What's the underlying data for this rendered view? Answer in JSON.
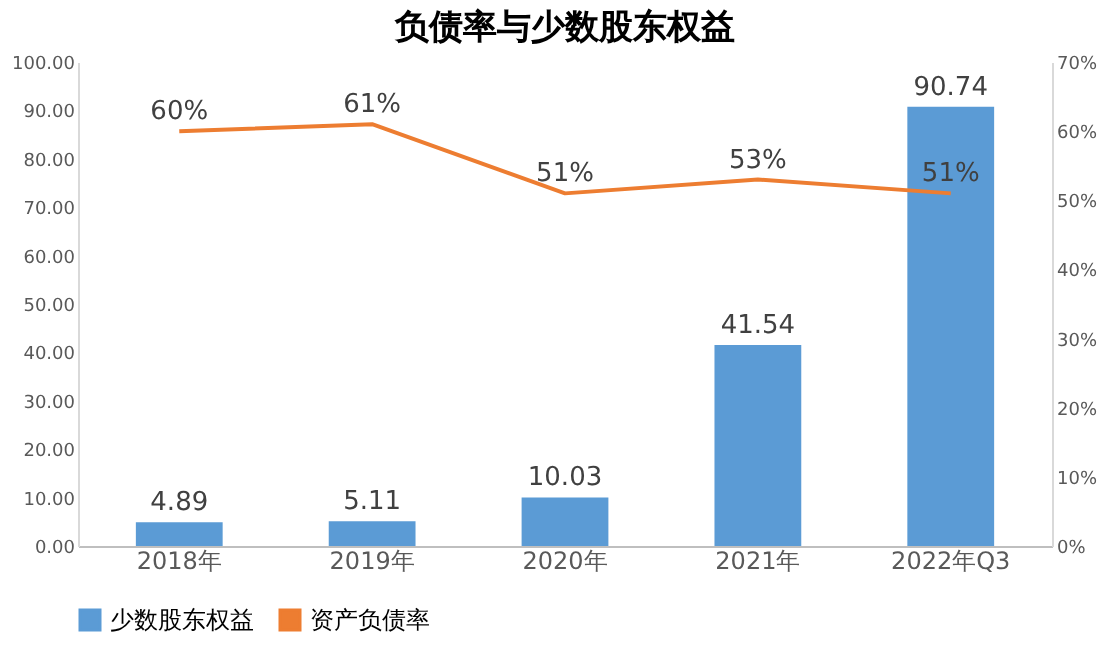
{
  "chart_data": {
    "type": "bar",
    "title": "负债率与少数股东权益",
    "categories": [
      "2018年",
      "2019年",
      "2020年",
      "2021年",
      "2022年Q3"
    ],
    "series": [
      {
        "name": "少数股东权益",
        "color": "#5b9bd5",
        "values": [
          4.89,
          5.11,
          10.03,
          41.54,
          90.74
        ],
        "value_labels": [
          "4.89",
          "5.11",
          "10.03",
          "41.54",
          "90.74"
        ]
      },
      {
        "name": "资产负债率",
        "type": "line",
        "axis": "y2",
        "color": "#ed7d31",
        "values": [
          60,
          61,
          51,
          53,
          51
        ],
        "value_labels": [
          "60%",
          "61%",
          "51%",
          "53%",
          "51%"
        ]
      }
    ],
    "ylim": [
      0,
      100
    ],
    "yticks": [
      {
        "value": 0,
        "label": "0.00"
      },
      {
        "value": 10,
        "label": "10.00"
      },
      {
        "value": 20,
        "label": "20.00"
      },
      {
        "value": 30,
        "label": "30.00"
      },
      {
        "value": 40,
        "label": "40.00"
      },
      {
        "value": 50,
        "label": "50.00"
      },
      {
        "value": 60,
        "label": "60.00"
      },
      {
        "value": 70,
        "label": "70.00"
      },
      {
        "value": 80,
        "label": "80.00"
      },
      {
        "value": 90,
        "label": "90.00"
      },
      {
        "value": 100,
        "label": "100.00"
      }
    ],
    "y2lim": [
      0,
      70
    ],
    "y2ticks": [
      {
        "value": 0,
        "label": "0%"
      },
      {
        "value": 10,
        "label": "10%"
      },
      {
        "value": 20,
        "label": "20%"
      },
      {
        "value": 30,
        "label": "30%"
      },
      {
        "value": 40,
        "label": "40%"
      },
      {
        "value": 50,
        "label": "50%"
      },
      {
        "value": 60,
        "label": "60%"
      },
      {
        "value": 70,
        "label": "70%"
      }
    ],
    "grid": false,
    "legend": "bottom",
    "marker": "none",
    "line_style": "solid"
  }
}
